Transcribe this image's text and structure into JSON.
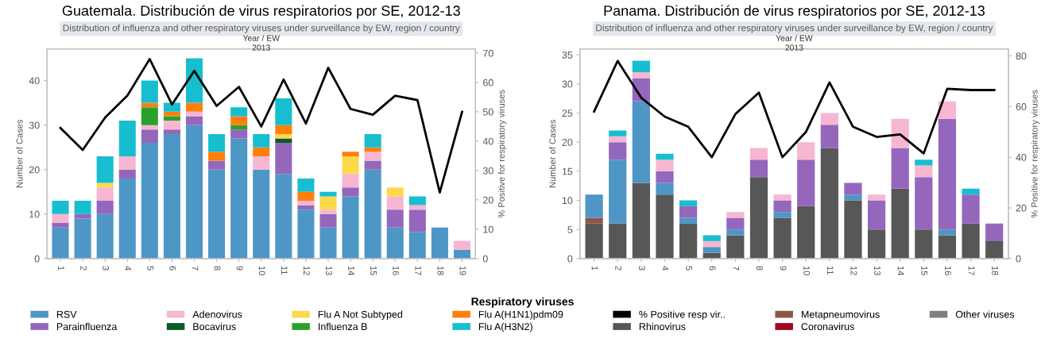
{
  "chart_data": [
    {
      "type": "bar",
      "stacked": true,
      "title": "Guatemala. Distribución de virus respiratorios por SE, 2012-13",
      "subtitle": "Distribution of influenza and other respiratory viruses under surveillance by EW, region / country",
      "annotations": [
        "Year / EW",
        "2013"
      ],
      "ylabel": "Number of Cases",
      "y2label": "% Positive for respiratory viruses",
      "legend_title": "Respiratory viruses",
      "legend": "bottom",
      "grid": false,
      "categories": [
        "1",
        "2",
        "3",
        "4",
        "5",
        "6",
        "7",
        "8",
        "9",
        "10",
        "11",
        "12",
        "13",
        "14",
        "15",
        "16",
        "17",
        "18",
        "19"
      ],
      "ylim": [
        0,
        47.1
      ],
      "yticks": [
        0,
        10,
        20,
        30,
        40
      ],
      "y2lim": [
        0,
        71.4
      ],
      "y2ticks": [
        0,
        10,
        20,
        30,
        40,
        50,
        60,
        70
      ],
      "series": [
        {
          "name": "RSV",
          "color": "#4e96c6",
          "values": [
            7,
            9,
            10,
            18,
            26,
            28,
            30,
            20,
            27,
            20,
            19,
            11,
            7,
            14,
            20,
            7,
            6,
            7,
            2
          ]
        },
        {
          "name": "Parainfluenza",
          "color": "#9467bd",
          "values": [
            1,
            1,
            3,
            2,
            3,
            1,
            2,
            2,
            2,
            0,
            7,
            1,
            3,
            2,
            2,
            4,
            5,
            0,
            0
          ]
        },
        {
          "name": "Adenovirus",
          "color": "#f7b6d2",
          "values": [
            2,
            0,
            3,
            3,
            1,
            2,
            1,
            0,
            0,
            3,
            0,
            1,
            1,
            3,
            2,
            3,
            1,
            0,
            2
          ]
        },
        {
          "name": "Bocavirus",
          "color": "#0b5a27",
          "values": [
            0,
            0,
            0,
            0,
            0,
            0,
            0,
            0,
            0,
            0,
            1,
            0,
            0,
            0,
            0,
            0,
            0,
            0,
            0
          ]
        },
        {
          "name": "Flu A Not Subtyped",
          "color": "#fdd84a",
          "values": [
            0,
            0,
            1,
            0,
            0,
            0,
            0,
            0,
            0,
            0,
            1,
            0,
            3,
            4,
            0,
            2,
            0,
            0,
            0
          ]
        },
        {
          "name": "Influenza B",
          "color": "#2ca02c",
          "values": [
            0,
            0,
            0,
            0,
            4,
            1,
            0,
            0,
            1,
            0,
            0,
            0,
            0,
            0,
            0,
            0,
            0,
            0,
            0
          ]
        },
        {
          "name": "Flu A(H1N1)pdm09",
          "color": "#ff7f0e",
          "values": [
            0,
            0,
            0,
            0,
            1,
            1,
            2,
            2,
            2,
            2,
            2,
            2,
            0,
            1,
            1,
            0,
            0,
            0,
            0
          ]
        },
        {
          "name": "Flu A(H3N2)",
          "color": "#17becf",
          "values": [
            3,
            3,
            6,
            8,
            5,
            2,
            10,
            4,
            2,
            3,
            6,
            3,
            1,
            0,
            3,
            0,
            2,
            0,
            0
          ]
        },
        {
          "name": "% Positive resp vir..",
          "type": "line",
          "axis": "y2",
          "color": "#000000",
          "values": [
            44.5,
            37,
            48,
            55.5,
            68,
            52.5,
            64,
            52,
            58.5,
            45,
            61,
            46,
            65,
            51,
            49,
            55.5,
            54,
            22.5,
            50
          ]
        }
      ]
    },
    {
      "type": "bar",
      "stacked": true,
      "title": "Panama. Distribución de virus respiratorios por SE, 2012-13",
      "subtitle": "Distribution of influenza and other respiratory viruses under surveillance by EW, region / country",
      "annotations": [
        "Year / EW",
        "2013"
      ],
      "ylabel": "Number of Cases",
      "y2label": "% Positive for respiratory viruses",
      "legend": "bottom",
      "grid": false,
      "categories": [
        "1",
        "2",
        "3",
        "4",
        "5",
        "6",
        "7",
        "8",
        "9",
        "10",
        "11",
        "12",
        "13",
        "14",
        "15",
        "16",
        "17",
        "18"
      ],
      "ylim": [
        0,
        36
      ],
      "yticks": [
        0,
        5,
        10,
        15,
        20,
        25,
        30,
        35
      ],
      "y2lim": [
        0,
        82.7
      ],
      "y2ticks": [
        0,
        20,
        40,
        60,
        80
      ],
      "series": [
        {
          "name": "Rhinovirus",
          "color": "#575757",
          "values": [
            6,
            6,
            13,
            11,
            6,
            1,
            4,
            14,
            7,
            9,
            19,
            10,
            5,
            12,
            5,
            4,
            6,
            3
          ]
        },
        {
          "name": "Metapneumovirus",
          "color": "#8c564b",
          "values": [
            1,
            0,
            0,
            0,
            0,
            0,
            0,
            0,
            0,
            0,
            0,
            0,
            0,
            0,
            0,
            0,
            0,
            0
          ]
        },
        {
          "name": "RSV",
          "color": "#4e96c6",
          "values": [
            4,
            11,
            14,
            2,
            1,
            1,
            1,
            0,
            1,
            0,
            0,
            1,
            0,
            0,
            0,
            1,
            0,
            0
          ]
        },
        {
          "name": "Parainfluenza",
          "color": "#9467bd",
          "values": [
            0,
            3,
            4,
            2,
            2,
            0,
            2,
            3,
            2,
            8,
            4,
            2,
            5,
            7,
            9,
            19,
            5,
            3
          ]
        },
        {
          "name": "Adenovirus",
          "color": "#f7b6d2",
          "values": [
            0,
            1,
            1,
            2,
            0,
            1,
            1,
            2,
            1,
            3,
            2,
            0,
            1,
            5,
            2,
            3,
            0,
            0
          ]
        },
        {
          "name": "Coronavirus",
          "color": "#9b0a20",
          "values": [
            0,
            0,
            0,
            0,
            0,
            0,
            0,
            0,
            0,
            0,
            0,
            0,
            0,
            0,
            0,
            0,
            0,
            0
          ]
        },
        {
          "name": "Other viruses",
          "color": "#7f7f7f",
          "values": [
            0,
            0,
            0,
            0,
            0,
            0,
            0,
            0,
            0,
            0,
            0,
            0,
            0,
            0,
            0,
            0,
            0,
            0
          ]
        },
        {
          "name": "Flu A(H3N2)",
          "color": "#17becf",
          "values": [
            0,
            1,
            2,
            1,
            1,
            1,
            0,
            0,
            0,
            0,
            0,
            0,
            0,
            0,
            1,
            0,
            1,
            0
          ]
        },
        {
          "name": "% Positive resp vir..",
          "type": "line",
          "axis": "y2",
          "color": "#000000",
          "values": [
            58,
            78,
            63.5,
            56,
            52,
            40,
            57,
            65.5,
            40,
            50,
            69.5,
            52,
            48,
            49,
            41.5,
            67,
            66.5,
            66.5
          ]
        }
      ]
    }
  ]
}
